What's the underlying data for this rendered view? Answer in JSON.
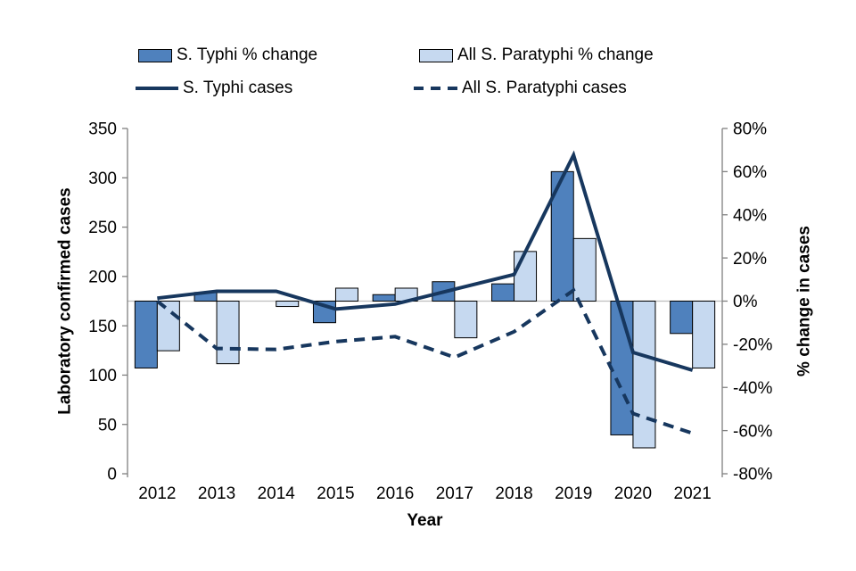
{
  "legend": {
    "typhi_pct_label": "S. Typhi % change",
    "para_pct_label": "All S. Paratyphi % change",
    "typhi_cases_label": "S. Typhi cases",
    "para_cases_label": "All S. Paratyphi cases"
  },
  "colors": {
    "typhi_bar": "#4F81BD",
    "para_bar": "#C6D9F0",
    "bar_border": "#000000",
    "line": "#17375E",
    "axis": "#808080",
    "gridline": "#BFBFBF",
    "text": "#000000",
    "background": "#FFFFFF"
  },
  "chart_data": {
    "type": "combo_bar_line",
    "categories": [
      "2012",
      "2013",
      "2014",
      "2015",
      "2016",
      "2017",
      "2018",
      "2019",
      "2020",
      "2021"
    ],
    "series": [
      {
        "name": "S. Typhi % change",
        "type": "bar",
        "axis": "right",
        "unit": "%",
        "values": [
          -31,
          4,
          0,
          -10,
          3,
          9,
          8,
          60,
          -62,
          -15
        ]
      },
      {
        "name": "All S. Paratyphi % change",
        "type": "bar",
        "axis": "right",
        "unit": "%",
        "values": [
          -23,
          -29,
          -2.5,
          6,
          6,
          -17,
          23,
          29,
          -68,
          -31
        ]
      },
      {
        "name": "S. Typhi cases",
        "type": "line",
        "style": "solid",
        "axis": "left",
        "values": [
          178,
          185,
          185,
          167,
          172,
          187,
          202,
          323,
          123,
          105
        ]
      },
      {
        "name": "All S. Paratyphi cases",
        "type": "line",
        "style": "dashed",
        "axis": "left",
        "values": [
          175,
          127,
          126,
          134,
          139,
          118,
          144,
          186,
          61,
          41
        ]
      }
    ],
    "xlabel": "Year",
    "left_axis": {
      "label": "Laboratory confirmed cases",
      "range": [
        0,
        350
      ],
      "ticks": [
        "350",
        "300",
        "250",
        "200",
        "150",
        "100",
        "50",
        "0"
      ],
      "tick_values": [
        350,
        300,
        250,
        200,
        150,
        100,
        50,
        0
      ]
    },
    "right_axis": {
      "label": "% change in cases",
      "range": [
        -80,
        80
      ],
      "ticks": [
        "80%",
        "60%",
        "40%",
        "20%",
        "0%",
        "-20%",
        "-40%",
        "-60%",
        "-80%"
      ],
      "tick_values": [
        80,
        60,
        40,
        20,
        0,
        -20,
        -40,
        -60,
        -80
      ]
    },
    "grid": "zero-baseline-only",
    "legend_position": "top"
  }
}
